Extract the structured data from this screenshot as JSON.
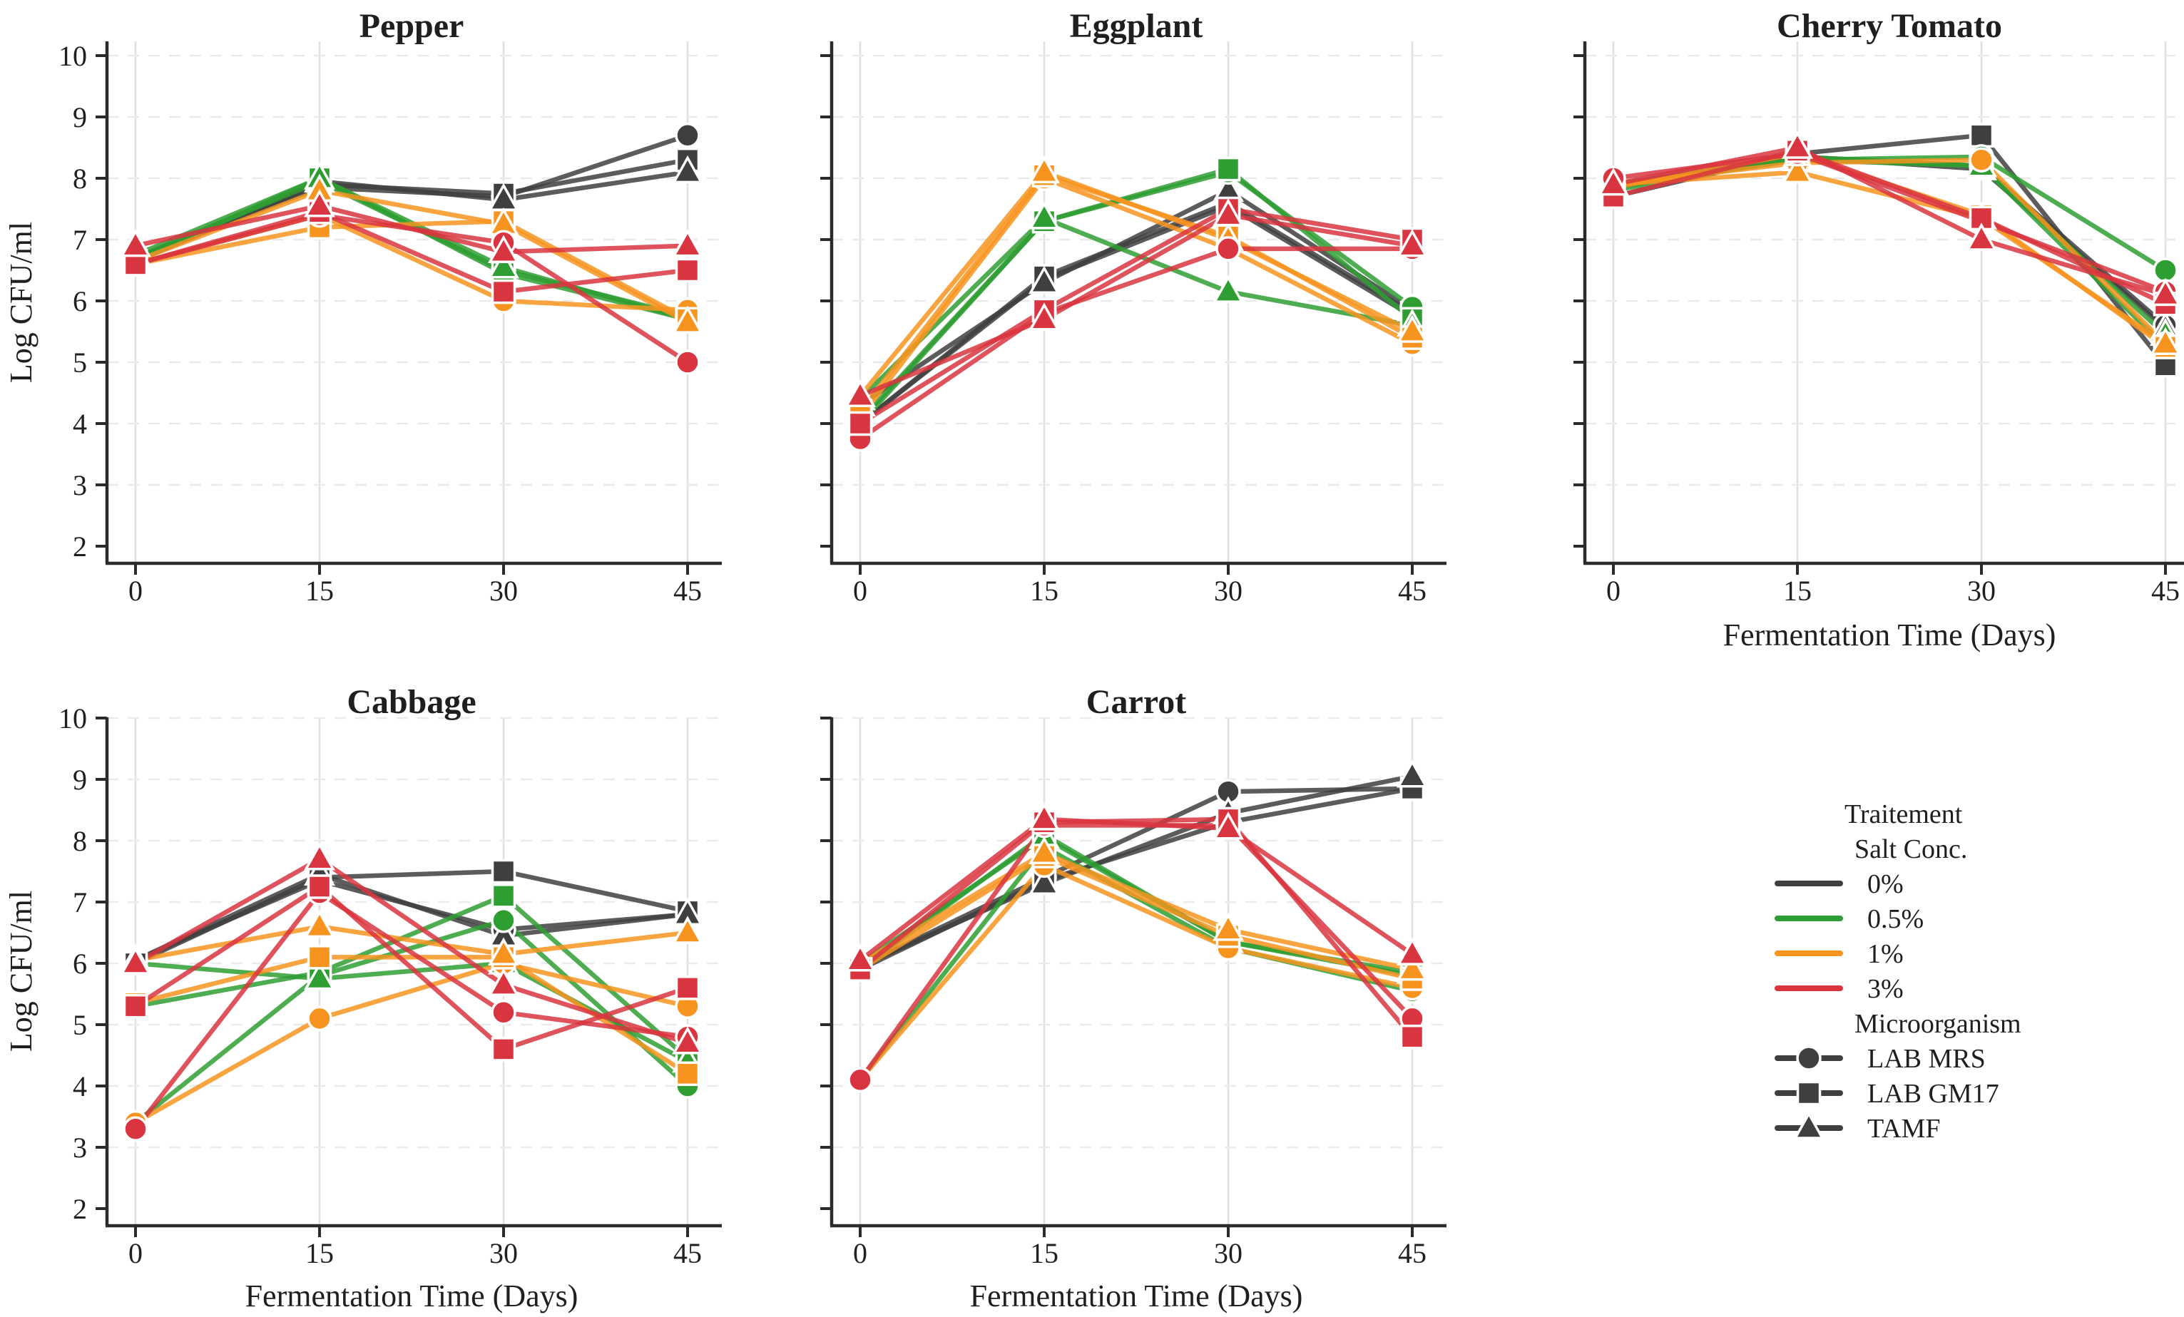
{
  "figure": {
    "y_axis_label": "Log CFU/ml",
    "x_axis_label": "Fermentation Time (Days)",
    "salt_colors": {
      "0%": "#3f3f3f",
      "0.5%": "#2f9e32",
      "1%": "#f79420",
      "3%": "#d93540"
    },
    "organism_markers": {
      "LAB MRS": "circle",
      "LAB GM17": "square",
      "TAMF": "triangle"
    },
    "legend": {
      "title": "Traitement",
      "salt_header": "Salt Conc.",
      "salt_items": [
        {
          "label": "0%",
          "color_key": "0%"
        },
        {
          "label": "0.5%",
          "color_key": "0.5%"
        },
        {
          "label": "1%",
          "color_key": "1%"
        },
        {
          "label": "3%",
          "color_key": "3%"
        }
      ],
      "organism_header": "Microorganism",
      "organism_items": [
        {
          "label": "LAB MRS",
          "marker": "circle"
        },
        {
          "label": "LAB GM17",
          "marker": "square"
        },
        {
          "label": "TAMF",
          "marker": "triangle"
        }
      ],
      "swatch_color": "#3f3f3f"
    }
  },
  "chart_data": [
    {
      "type": "line",
      "title": "Pepper",
      "x": [
        0,
        15,
        30,
        45
      ],
      "x_ticks": [
        0,
        15,
        30,
        45
      ],
      "y_ticks": [
        2,
        3,
        4,
        5,
        6,
        7,
        8,
        9,
        10
      ],
      "ylim": [
        2,
        10
      ],
      "ylabel": "Log CFU/ml",
      "xlabel": "",
      "show_y_tick_labels": true,
      "show_y_label": true,
      "show_x_label": false,
      "grid": true,
      "series": [
        {
          "salt": "0%",
          "organism": "LAB MRS",
          "values": [
            6.7,
            7.85,
            7.7,
            8.7
          ]
        },
        {
          "salt": "0%",
          "organism": "LAB GM17",
          "values": [
            6.65,
            7.9,
            7.75,
            8.3
          ]
        },
        {
          "salt": "0%",
          "organism": "TAMF",
          "values": [
            6.7,
            7.95,
            7.65,
            8.1
          ]
        },
        {
          "salt": "0.5%",
          "organism": "LAB MRS",
          "values": [
            6.7,
            7.95,
            6.5,
            5.75
          ]
        },
        {
          "salt": "0.5%",
          "organism": "LAB GM17",
          "values": [
            6.65,
            8.0,
            6.45,
            5.7
          ]
        },
        {
          "salt": "0.5%",
          "organism": "TAMF",
          "values": [
            6.75,
            8.0,
            6.55,
            5.7
          ]
        },
        {
          "salt": "1%",
          "organism": "LAB MRS",
          "values": [
            6.6,
            7.4,
            6.0,
            5.85
          ]
        },
        {
          "salt": "1%",
          "organism": "LAB GM17",
          "values": [
            6.6,
            7.2,
            7.3,
            5.7
          ]
        },
        {
          "salt": "1%",
          "organism": "TAMF",
          "values": [
            6.65,
            7.8,
            7.25,
            5.65
          ]
        },
        {
          "salt": "3%",
          "organism": "LAB MRS",
          "values": [
            6.6,
            7.4,
            6.95,
            5.0
          ]
        },
        {
          "salt": "3%",
          "organism": "LAB GM17",
          "values": [
            6.6,
            7.45,
            6.15,
            6.5
          ]
        },
        {
          "salt": "3%",
          "organism": "TAMF",
          "values": [
            6.9,
            7.55,
            6.8,
            6.9
          ]
        }
      ]
    },
    {
      "type": "line",
      "title": "Eggplant",
      "x": [
        0,
        15,
        30,
        45
      ],
      "x_ticks": [
        0,
        15,
        30,
        45
      ],
      "y_ticks": [
        2,
        3,
        4,
        5,
        6,
        7,
        8,
        9,
        10
      ],
      "ylim": [
        2,
        10
      ],
      "ylabel": "",
      "xlabel": "",
      "show_y_tick_labels": false,
      "show_y_label": false,
      "show_x_label": false,
      "grid": true,
      "series": [
        {
          "salt": "0%",
          "organism": "LAB MRS",
          "values": [
            4.0,
            6.35,
            7.55,
            5.75
          ]
        },
        {
          "salt": "0%",
          "organism": "LAB GM17",
          "values": [
            4.0,
            6.4,
            7.6,
            5.8
          ]
        },
        {
          "salt": "0%",
          "organism": "TAMF",
          "values": [
            4.3,
            6.3,
            7.8,
            5.85
          ]
        },
        {
          "salt": "0.5%",
          "organism": "LAB MRS",
          "values": [
            4.05,
            7.3,
            8.1,
            5.9
          ]
        },
        {
          "salt": "0.5%",
          "organism": "LAB GM17",
          "values": [
            4.0,
            7.3,
            8.15,
            5.7
          ]
        },
        {
          "salt": "0.5%",
          "organism": "TAMF",
          "values": [
            4.4,
            7.35,
            6.15,
            5.6
          ]
        },
        {
          "salt": "1%",
          "organism": "LAB MRS",
          "values": [
            4.1,
            8.0,
            6.85,
            5.3
          ]
        },
        {
          "salt": "1%",
          "organism": "LAB GM17",
          "values": [
            4.2,
            8.05,
            7.05,
            5.4
          ]
        },
        {
          "salt": "1%",
          "organism": "TAMF",
          "values": [
            4.45,
            8.1,
            7.0,
            5.5
          ]
        },
        {
          "salt": "3%",
          "organism": "LAB MRS",
          "values": [
            3.75,
            5.8,
            6.85,
            6.85
          ]
        },
        {
          "salt": "3%",
          "organism": "LAB GM17",
          "values": [
            4.0,
            5.85,
            7.5,
            7.0
          ]
        },
        {
          "salt": "3%",
          "organism": "TAMF",
          "values": [
            4.45,
            5.7,
            7.4,
            6.9
          ]
        }
      ]
    },
    {
      "type": "line",
      "title": "Cherry Tomato",
      "x": [
        0,
        15,
        30,
        45
      ],
      "x_ticks": [
        0,
        15,
        30,
        45
      ],
      "y_ticks": [
        2,
        3,
        4,
        5,
        6,
        7,
        8,
        9,
        10
      ],
      "ylim": [
        2,
        10
      ],
      "ylabel": "",
      "xlabel": "Fermentation Time (Days)",
      "show_y_tick_labels": false,
      "show_y_label": false,
      "show_x_label": true,
      "grid": true,
      "series": [
        {
          "salt": "0%",
          "organism": "LAB MRS",
          "values": [
            7.9,
            8.35,
            8.2,
            5.6
          ]
        },
        {
          "salt": "0%",
          "organism": "LAB GM17",
          "values": [
            7.7,
            8.4,
            8.7,
            4.95
          ]
        },
        {
          "salt": "0%",
          "organism": "TAMF",
          "values": [
            7.85,
            8.35,
            8.15,
            5.55
          ]
        },
        {
          "salt": "0.5%",
          "organism": "LAB MRS",
          "values": [
            7.85,
            8.3,
            8.35,
            6.5
          ]
        },
        {
          "salt": "0.5%",
          "organism": "LAB GM17",
          "values": [
            7.8,
            8.35,
            8.2,
            5.25
          ]
        },
        {
          "salt": "0.5%",
          "organism": "TAMF",
          "values": [
            7.85,
            8.3,
            8.2,
            5.45
          ]
        },
        {
          "salt": "1%",
          "organism": "LAB MRS",
          "values": [
            7.9,
            8.25,
            8.3,
            5.3
          ]
        },
        {
          "salt": "1%",
          "organism": "LAB GM17",
          "values": [
            7.85,
            8.4,
            7.4,
            5.25
          ]
        },
        {
          "salt": "1%",
          "organism": "TAMF",
          "values": [
            7.9,
            8.1,
            7.35,
            5.3
          ]
        },
        {
          "salt": "3%",
          "organism": "LAB MRS",
          "values": [
            8.0,
            8.4,
            7.3,
            6.15
          ]
        },
        {
          "salt": "3%",
          "organism": "LAB GM17",
          "values": [
            7.7,
            8.45,
            7.35,
            5.95
          ]
        },
        {
          "salt": "3%",
          "organism": "TAMF",
          "values": [
            7.9,
            8.5,
            7.0,
            6.1
          ]
        }
      ]
    },
    {
      "type": "line",
      "title": "Cabbage",
      "x": [
        0,
        15,
        30,
        45
      ],
      "x_ticks": [
        0,
        15,
        30,
        45
      ],
      "y_ticks": [
        2,
        3,
        4,
        5,
        6,
        7,
        8,
        9,
        10
      ],
      "ylim": [
        2,
        10
      ],
      "ylabel": "Log CFU/ml",
      "xlabel": "Fermentation Time (Days)",
      "show_y_tick_labels": true,
      "show_y_label": true,
      "show_x_label": true,
      "grid": true,
      "series": [
        {
          "salt": "0%",
          "organism": "LAB MRS",
          "values": [
            6.05,
            7.35,
            6.55,
            6.8
          ]
        },
        {
          "salt": "0%",
          "organism": "LAB GM17",
          "values": [
            6.0,
            7.4,
            7.5,
            6.85
          ]
        },
        {
          "salt": "0%",
          "organism": "TAMF",
          "values": [
            6.05,
            7.45,
            6.45,
            6.8
          ]
        },
        {
          "salt": "0.5%",
          "organism": "LAB MRS",
          "values": [
            3.4,
            5.8,
            6.7,
            4.0
          ]
        },
        {
          "salt": "0.5%",
          "organism": "LAB GM17",
          "values": [
            5.3,
            5.85,
            7.1,
            4.45
          ]
        },
        {
          "salt": "0.5%",
          "organism": "TAMF",
          "values": [
            6.0,
            5.75,
            6.0,
            4.4
          ]
        },
        {
          "salt": "1%",
          "organism": "LAB MRS",
          "values": [
            3.4,
            5.1,
            6.0,
            5.3
          ]
        },
        {
          "salt": "1%",
          "organism": "LAB GM17",
          "values": [
            5.35,
            6.1,
            6.1,
            4.2
          ]
        },
        {
          "salt": "1%",
          "organism": "TAMF",
          "values": [
            6.05,
            6.6,
            6.15,
            6.5
          ]
        },
        {
          "salt": "3%",
          "organism": "LAB MRS",
          "values": [
            3.3,
            7.15,
            5.2,
            4.8
          ]
        },
        {
          "salt": "3%",
          "organism": "LAB GM17",
          "values": [
            5.3,
            7.25,
            4.6,
            5.6
          ]
        },
        {
          "salt": "3%",
          "organism": "TAMF",
          "values": [
            6.0,
            7.7,
            5.65,
            4.7
          ]
        }
      ]
    },
    {
      "type": "line",
      "title": "Carrot",
      "x": [
        0,
        15,
        30,
        45
      ],
      "x_ticks": [
        0,
        15,
        30,
        45
      ],
      "y_ticks": [
        2,
        3,
        4,
        5,
        6,
        7,
        8,
        9,
        10
      ],
      "ylim": [
        2,
        10
      ],
      "ylabel": "",
      "xlabel": "Fermentation Time (Days)",
      "show_y_tick_labels": false,
      "show_y_label": false,
      "show_x_label": true,
      "grid": true,
      "series": [
        {
          "salt": "0%",
          "organism": "LAB MRS",
          "values": [
            5.95,
            7.4,
            8.8,
            8.85
          ]
        },
        {
          "salt": "0%",
          "organism": "LAB GM17",
          "values": [
            5.9,
            7.35,
            8.3,
            8.85
          ]
        },
        {
          "salt": "0%",
          "organism": "TAMF",
          "values": [
            5.95,
            7.3,
            8.45,
            9.05
          ]
        },
        {
          "salt": "0.5%",
          "organism": "LAB MRS",
          "values": [
            4.1,
            7.9,
            6.25,
            5.55
          ]
        },
        {
          "salt": "0.5%",
          "organism": "LAB GM17",
          "values": [
            5.9,
            8.1,
            6.35,
            5.8
          ]
        },
        {
          "salt": "0.5%",
          "organism": "TAMF",
          "values": [
            6.0,
            8.05,
            6.35,
            5.85
          ]
        },
        {
          "salt": "1%",
          "organism": "LAB MRS",
          "values": [
            4.1,
            7.6,
            6.25,
            5.6
          ]
        },
        {
          "salt": "1%",
          "organism": "LAB GM17",
          "values": [
            5.9,
            7.75,
            6.45,
            5.75
          ]
        },
        {
          "salt": "1%",
          "organism": "TAMF",
          "values": [
            6.0,
            7.8,
            6.55,
            5.9
          ]
        },
        {
          "salt": "3%",
          "organism": "LAB MRS",
          "values": [
            4.1,
            8.25,
            8.25,
            5.1
          ]
        },
        {
          "salt": "3%",
          "organism": "LAB GM17",
          "values": [
            5.9,
            8.3,
            8.35,
            4.8
          ]
        },
        {
          "salt": "3%",
          "organism": "TAMF",
          "values": [
            6.05,
            8.35,
            8.2,
            6.15
          ]
        }
      ]
    }
  ]
}
